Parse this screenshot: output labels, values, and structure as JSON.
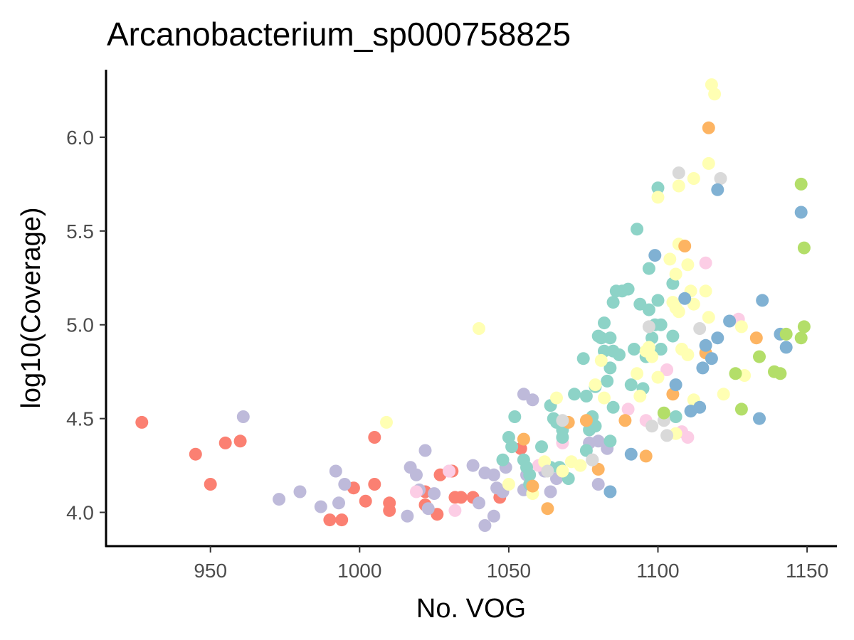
{
  "chart_data": {
    "type": "scatter",
    "title": "Arcanobacterium_sp000758825",
    "xlabel": "No. VOG",
    "ylabel": "log10(Coverage)",
    "xlim": [
      915,
      1160
    ],
    "ylim": [
      3.82,
      6.36
    ],
    "x_ticks": [
      950,
      1000,
      1050,
      1100,
      1150
    ],
    "y_ticks": [
      4.0,
      4.5,
      5.0,
      5.5,
      6.0
    ],
    "x_tick_labels": [
      "950",
      "1000",
      "1050",
      "1100",
      "1150"
    ],
    "y_tick_labels": [
      "4.0",
      "4.5",
      "5.0",
      "5.5",
      "6.0"
    ],
    "grid": false,
    "legend": "none",
    "palette": {
      "salmon": "#fb8072",
      "lavender": "#bebada",
      "pink": "#fccde5",
      "teal": "#8dd3c7",
      "yellow": "#ffffb3",
      "orange": "#fdb462",
      "grey": "#d9d9d9",
      "blue": "#80b1d3",
      "green": "#b3de69"
    },
    "series": [
      {
        "color_key": "salmon",
        "points": [
          [
            927,
            4.48
          ],
          [
            945,
            4.31
          ],
          [
            950,
            4.15
          ],
          [
            955,
            4.37
          ],
          [
            960,
            4.38
          ],
          [
            990,
            3.96
          ],
          [
            994,
            3.96
          ],
          [
            998,
            4.13
          ],
          [
            1002,
            4.06
          ],
          [
            1005,
            4.15
          ],
          [
            1005,
            4.4
          ],
          [
            1010,
            4.05
          ],
          [
            1010,
            4.01
          ],
          [
            1022,
            4.11
          ],
          [
            1022,
            4.04
          ],
          [
            1026,
            3.99
          ],
          [
            1027,
            4.2
          ],
          [
            1031,
            4.22
          ],
          [
            1032,
            4.08
          ],
          [
            1034,
            4.08
          ],
          [
            1038,
            4.08
          ],
          [
            1047,
            4.08
          ],
          [
            1054,
            4.34
          ]
        ]
      },
      {
        "color_key": "lavender",
        "points": [
          [
            961,
            4.51
          ],
          [
            973,
            4.07
          ],
          [
            980,
            4.11
          ],
          [
            987,
            4.03
          ],
          [
            992,
            4.22
          ],
          [
            993,
            4.05
          ],
          [
            995,
            4.15
          ],
          [
            1016,
            3.98
          ],
          [
            1017,
            4.24
          ],
          [
            1019,
            4.2
          ],
          [
            1020,
            4.12
          ],
          [
            1022,
            4.33
          ],
          [
            1023,
            4.02
          ],
          [
            1025,
            4.1
          ],
          [
            1030,
            4.22
          ],
          [
            1038,
            4.25
          ],
          [
            1040,
            4.05
          ],
          [
            1042,
            4.21
          ],
          [
            1042,
            3.93
          ],
          [
            1045,
            4.2
          ],
          [
            1045,
            3.98
          ],
          [
            1046,
            4.13
          ],
          [
            1048,
            4.11
          ],
          [
            1049,
            4.24
          ],
          [
            1055,
            4.63
          ],
          [
            1055,
            4.12
          ],
          [
            1056,
            4.2
          ],
          [
            1058,
            4.6
          ],
          [
            1062,
            4.22
          ],
          [
            1064,
            4.11
          ],
          [
            1066,
            4.18
          ],
          [
            1077,
            4.37
          ],
          [
            1078,
            4.28
          ],
          [
            1080,
            4.15
          ],
          [
            1080,
            4.38
          ],
          [
            1083,
            4.34
          ]
        ]
      },
      {
        "color_key": "pink",
        "points": [
          [
            1019,
            4.11
          ],
          [
            1030,
            4.22
          ],
          [
            1032,
            4.01
          ],
          [
            1068,
            4.37
          ],
          [
            1090,
            4.55
          ],
          [
            1096,
            4.49
          ],
          [
            1103,
            4.76
          ],
          [
            1108,
            4.43
          ],
          [
            1110,
            4.4
          ],
          [
            1116,
            5.33
          ],
          [
            1127,
            5.03
          ],
          [
            1060,
            4.25
          ]
        ]
      },
      {
        "color_key": "teal",
        "points": [
          [
            1048,
            4.28
          ],
          [
            1050,
            4.4
          ],
          [
            1051,
            4.35
          ],
          [
            1052,
            4.51
          ],
          [
            1055,
            4.28
          ],
          [
            1056,
            4.24
          ],
          [
            1057,
            4.2
          ],
          [
            1057,
            4.15
          ],
          [
            1061,
            4.35
          ],
          [
            1064,
            4.57
          ],
          [
            1064,
            4.24
          ],
          [
            1065,
            4.5
          ],
          [
            1066,
            4.48
          ],
          [
            1067,
            4.24
          ],
          [
            1068,
            4.44
          ],
          [
            1068,
            4.4
          ],
          [
            1070,
            4.18
          ],
          [
            1072,
            4.63
          ],
          [
            1075,
            4.82
          ],
          [
            1076,
            4.62
          ],
          [
            1076,
            4.33
          ],
          [
            1077,
            4.44
          ],
          [
            1078,
            4.51
          ],
          [
            1079,
            4.67
          ],
          [
            1079,
            4.46
          ],
          [
            1080,
            4.94
          ],
          [
            1081,
            4.93
          ],
          [
            1082,
            5.01
          ],
          [
            1082,
            4.86
          ],
          [
            1083,
            4.7
          ],
          [
            1084,
            4.93
          ],
          [
            1084,
            4.77
          ],
          [
            1084,
            4.38
          ],
          [
            1085,
            4.86
          ],
          [
            1085,
            4.56
          ],
          [
            1085,
            5.12
          ],
          [
            1086,
            5.18
          ],
          [
            1087,
            4.84
          ],
          [
            1088,
            5.18
          ],
          [
            1090,
            5.19
          ],
          [
            1091,
            4.68
          ],
          [
            1092,
            4.87
          ],
          [
            1093,
            5.51
          ],
          [
            1094,
            5.11
          ],
          [
            1095,
            4.66
          ],
          [
            1096,
            4.83
          ],
          [
            1097,
            5.3
          ],
          [
            1097,
            5.08
          ],
          [
            1098,
            4.93
          ],
          [
            1099,
            5.0
          ],
          [
            1100,
            5.73
          ],
          [
            1100,
            5.13
          ],
          [
            1101,
            5.0
          ],
          [
            1101,
            4.87
          ],
          [
            1105,
            5.22
          ],
          [
            1105,
            4.94
          ],
          [
            1106,
            4.51
          ]
        ]
      },
      {
        "color_key": "yellow",
        "points": [
          [
            1009,
            4.48
          ],
          [
            1040,
            4.98
          ],
          [
            1050,
            4.15
          ],
          [
            1058,
            4.1
          ],
          [
            1062,
            4.27
          ],
          [
            1066,
            4.61
          ],
          [
            1068,
            4.22
          ],
          [
            1071,
            4.27
          ],
          [
            1074,
            4.25
          ],
          [
            1079,
            4.68
          ],
          [
            1081,
            4.81
          ],
          [
            1082,
            4.61
          ],
          [
            1093,
            4.74
          ],
          [
            1094,
            4.62
          ],
          [
            1096,
            4.86
          ],
          [
            1097,
            4.88
          ],
          [
            1098,
            4.83
          ],
          [
            1100,
            5.68
          ],
          [
            1100,
            4.72
          ],
          [
            1104,
            5.35
          ],
          [
            1105,
            5.12
          ],
          [
            1106,
            5.27
          ],
          [
            1106,
            5.09
          ],
          [
            1106,
            4.42
          ],
          [
            1107,
            5.74
          ],
          [
            1107,
            5.43
          ],
          [
            1107,
            5.07
          ],
          [
            1108,
            4.87
          ],
          [
            1110,
            5.32
          ],
          [
            1110,
            4.84
          ],
          [
            1111,
            5.18
          ],
          [
            1112,
            5.78
          ],
          [
            1112,
            5.11
          ],
          [
            1112,
            4.6
          ],
          [
            1116,
            5.18
          ],
          [
            1117,
            5.86
          ],
          [
            1117,
            5.04
          ],
          [
            1118,
            6.28
          ],
          [
            1119,
            6.23
          ],
          [
            1122,
            4.63
          ],
          [
            1128,
            4.99
          ],
          [
            1129,
            4.73
          ]
        ]
      },
      {
        "color_key": "orange",
        "points": [
          [
            1055,
            4.39
          ],
          [
            1058,
            4.14
          ],
          [
            1063,
            4.02
          ],
          [
            1070,
            4.48
          ],
          [
            1076,
            4.49
          ],
          [
            1080,
            4.23
          ],
          [
            1089,
            4.49
          ],
          [
            1096,
            4.3
          ],
          [
            1105,
            4.63
          ],
          [
            1109,
            5.42
          ],
          [
            1116,
            4.85
          ],
          [
            1117,
            6.05
          ],
          [
            1133,
            4.93
          ]
        ]
      },
      {
        "color_key": "grey",
        "points": [
          [
            1063,
            4.22
          ],
          [
            1068,
            4.49
          ],
          [
            1078,
            4.28
          ],
          [
            1097,
            4.99
          ],
          [
            1098,
            4.46
          ],
          [
            1102,
            4.49
          ],
          [
            1103,
            4.41
          ],
          [
            1107,
            5.81
          ],
          [
            1114,
            4.98
          ],
          [
            1121,
            5.78
          ]
        ]
      },
      {
        "color_key": "blue",
        "points": [
          [
            1084,
            4.11
          ],
          [
            1091,
            4.31
          ],
          [
            1099,
            5.37
          ],
          [
            1106,
            4.68
          ],
          [
            1109,
            5.14
          ],
          [
            1111,
            4.54
          ],
          [
            1114,
            4.56
          ],
          [
            1115,
            4.77
          ],
          [
            1116,
            4.89
          ],
          [
            1118,
            4.82
          ],
          [
            1120,
            5.72
          ],
          [
            1120,
            4.93
          ],
          [
            1124,
            5.02
          ],
          [
            1134,
            4.5
          ],
          [
            1135,
            5.13
          ],
          [
            1141,
            4.95
          ],
          [
            1143,
            4.88
          ],
          [
            1148,
            5.6
          ]
        ]
      },
      {
        "color_key": "green",
        "points": [
          [
            1102,
            4.53
          ],
          [
            1126,
            4.74
          ],
          [
            1128,
            4.55
          ],
          [
            1134,
            4.83
          ],
          [
            1139,
            4.75
          ],
          [
            1141,
            4.74
          ],
          [
            1143,
            4.95
          ],
          [
            1148,
            5.75
          ],
          [
            1148,
            4.93
          ],
          [
            1149,
            5.41
          ],
          [
            1149,
            4.99
          ]
        ]
      }
    ]
  }
}
